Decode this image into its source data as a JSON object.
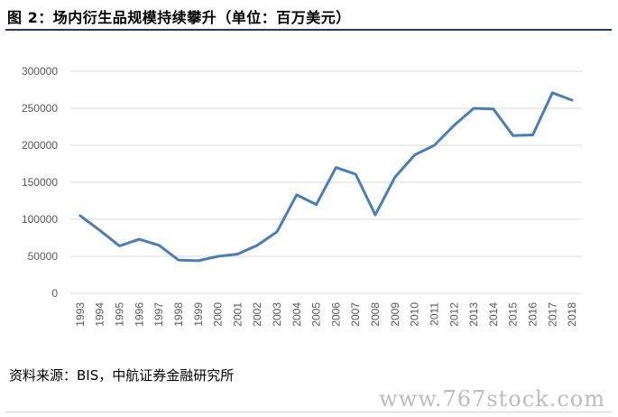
{
  "figure": {
    "title": "图 2：场内衍生品规模持续攀升（单位：百万美元）",
    "source": "资料来源：BIS，中航证券金融研究所",
    "watermark": "www.767stock.com"
  },
  "chart_data": {
    "type": "line",
    "title": "",
    "xlabel": "",
    "ylabel": "",
    "x": [
      "1993",
      "1994",
      "1995",
      "1996",
      "1997",
      "1998",
      "1999",
      "2000",
      "2001",
      "2002",
      "2003",
      "2004",
      "2005",
      "2006",
      "2007",
      "2008",
      "2009",
      "2010",
      "2011",
      "2012",
      "2013",
      "2014",
      "2015",
      "2016",
      "2017",
      "2018"
    ],
    "series": [
      {
        "values": [
          105000,
          85000,
          64000,
          73000,
          65000,
          45000,
          44000,
          50000,
          53000,
          65000,
          83000,
          133000,
          120000,
          170000,
          161000,
          106000,
          157000,
          187000,
          200000,
          227000,
          250000,
          249000,
          213000,
          214000,
          271000,
          261000
        ]
      }
    ],
    "ylim": [
      0,
      300000
    ],
    "yticks": [
      "0",
      "50000",
      "100000",
      "150000",
      "200000",
      "250000",
      "300000"
    ],
    "grid": true,
    "legend": "none",
    "line_color": "#4a7ebb",
    "grid_color": "#d9d9d9"
  }
}
